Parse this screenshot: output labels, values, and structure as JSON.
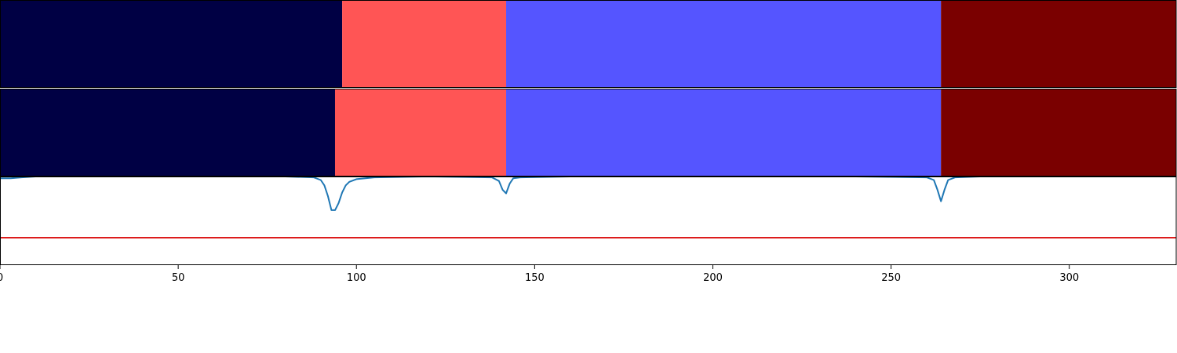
{
  "chart_data": [
    {
      "type": "segmentation",
      "panel": "top",
      "segments": [
        {
          "start": 0,
          "end": 96,
          "color": "#000044"
        },
        {
          "start": 96,
          "end": 142,
          "color": "#ff5555"
        },
        {
          "start": 142,
          "end": 264,
          "color": "#5555ff"
        },
        {
          "start": 264,
          "end": 330,
          "color": "#7a0000"
        }
      ]
    },
    {
      "type": "segmentation",
      "panel": "middle",
      "segments": [
        {
          "start": 0,
          "end": 94,
          "color": "#000044"
        },
        {
          "start": 94,
          "end": 142,
          "color": "#ff5555"
        },
        {
          "start": 142,
          "end": 264,
          "color": "#5555ff"
        },
        {
          "start": 264,
          "end": 330,
          "color": "#7a0000"
        }
      ]
    },
    {
      "type": "line",
      "panel": "bottom",
      "xlim": [
        0,
        330
      ],
      "ylim": [
        0,
        1
      ],
      "xticks": [
        0,
        50,
        100,
        150,
        200,
        250,
        300
      ],
      "xtick_labels": [
        "0",
        "50",
        "100",
        "150",
        "200",
        "250",
        "300"
      ],
      "series": [
        {
          "color": "#1f77b4",
          "x": [
            0,
            3,
            6,
            10,
            15,
            20,
            40,
            60,
            80,
            88,
            90,
            91,
            92,
            93,
            94,
            95,
            96,
            97,
            98,
            100,
            105,
            120,
            138,
            140,
            141,
            142,
            143,
            144,
            146,
            160,
            200,
            240,
            260,
            262,
            263,
            264,
            265,
            266,
            268,
            275,
            300,
            330
          ],
          "y": [
            0.98,
            0.98,
            0.99,
            1.0,
            1.0,
            1.0,
            1.0,
            1.0,
            1.0,
            0.99,
            0.96,
            0.9,
            0.78,
            0.62,
            0.62,
            0.7,
            0.82,
            0.9,
            0.94,
            0.97,
            0.99,
            1.0,
            0.99,
            0.95,
            0.85,
            0.81,
            0.92,
            0.98,
            0.99,
            1.0,
            1.0,
            1.0,
            0.99,
            0.96,
            0.85,
            0.72,
            0.85,
            0.96,
            0.99,
            1.0,
            1.0,
            1.0
          ]
        },
        {
          "color": "#dd1c1c",
          "x": [
            0,
            330
          ],
          "y": [
            0.31,
            0.31
          ]
        }
      ]
    }
  ]
}
